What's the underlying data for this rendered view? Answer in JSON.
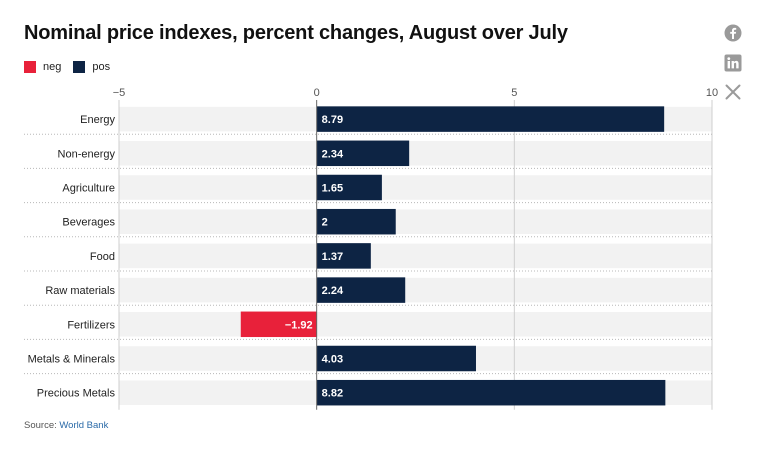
{
  "title": "Nominal price indexes, percent changes, August over July",
  "legend": [
    {
      "name": "neg",
      "color": "#e8213a"
    },
    {
      "name": "pos",
      "color": "#0d2444"
    }
  ],
  "social_icons": [
    "facebook-icon",
    "linkedin-icon",
    "x-icon"
  ],
  "source": {
    "label": "Source:",
    "link_text": "World Bank"
  },
  "chart_data": {
    "type": "bar",
    "orientation": "horizontal",
    "categories": [
      "Energy",
      "Non-energy",
      "Agriculture",
      "Beverages",
      "Food",
      "Raw materials",
      "Fertilizers",
      "Metals & Minerals",
      "Precious Metals"
    ],
    "values": [
      8.79,
      2.34,
      1.65,
      2,
      1.37,
      2.24,
      -1.92,
      4.03,
      8.82
    ],
    "value_labels": [
      "8.79",
      "2.34",
      "1.65",
      "2",
      "1.37",
      "2.24",
      "−1.92",
      "4.03",
      "8.82"
    ],
    "xlim": [
      -5,
      10
    ],
    "xticks": [
      -5,
      0,
      5,
      10
    ],
    "xtick_labels": [
      "−5",
      "0",
      "5",
      "10"
    ],
    "colors": {
      "neg": "#e8213a",
      "pos": "#0d2444"
    },
    "grid": true,
    "legend_position": "top-left"
  }
}
